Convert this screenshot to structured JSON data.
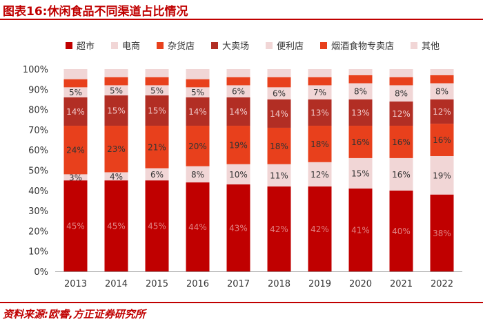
{
  "figure": {
    "title": "图表16:休闲食品不同渠道占比情况",
    "source": "资料来源:欧睿,方正证券研究所"
  },
  "chart_data": {
    "type": "bar",
    "stacked": true,
    "title": "图表16:休闲食品不同渠道占比情况",
    "xlabel": "",
    "ylabel": "",
    "ylim": [
      0,
      100
    ],
    "y_ticks": [
      0,
      10,
      20,
      30,
      40,
      50,
      60,
      70,
      80,
      90,
      100
    ],
    "y_tick_suffix": "%",
    "legend_position": "top",
    "categories": [
      "2013",
      "2014",
      "2015",
      "2016",
      "2017",
      "2018",
      "2019",
      "2020",
      "2021",
      "2022"
    ],
    "series": [
      {
        "name": "超市",
        "color": "#c00000",
        "label_color": "#e08080",
        "show_labels": true,
        "values": [
          45,
          45,
          45,
          44,
          43,
          42,
          42,
          41,
          40,
          38
        ]
      },
      {
        "name": "电商",
        "color": "#f1d6d6",
        "label_color": "#333333",
        "show_labels": true,
        "values": [
          3,
          4,
          6,
          8,
          10,
          11,
          12,
          15,
          16,
          19
        ]
      },
      {
        "name": "杂货店",
        "color": "#e8401c",
        "label_color": "#333333",
        "show_labels": true,
        "values": [
          24,
          23,
          21,
          20,
          19,
          18,
          18,
          16,
          16,
          16
        ]
      },
      {
        "name": "大卖场",
        "color": "#b22e24",
        "label_color": "#f0c8c8",
        "show_labels": true,
        "values": [
          14,
          15,
          15,
          14,
          14,
          14,
          13,
          13,
          12,
          12
        ]
      },
      {
        "name": "便利店",
        "color": "#f1d6d6",
        "label_color": "#333333",
        "show_labels": true,
        "values": [
          5,
          5,
          5,
          5,
          6,
          6,
          7,
          8,
          8,
          8
        ]
      },
      {
        "name": "烟酒食物专卖店",
        "color": "#e8401c",
        "label_color": "#333333",
        "show_labels": false,
        "values": [
          4,
          4,
          4,
          4,
          4,
          5,
          4,
          4,
          4,
          4
        ]
      },
      {
        "name": "其他",
        "color": "#f1d6d6",
        "label_color": "#333333",
        "show_labels": false,
        "values": [
          5,
          4,
          4,
          5,
          4,
          4,
          4,
          3,
          4,
          3
        ]
      }
    ]
  }
}
